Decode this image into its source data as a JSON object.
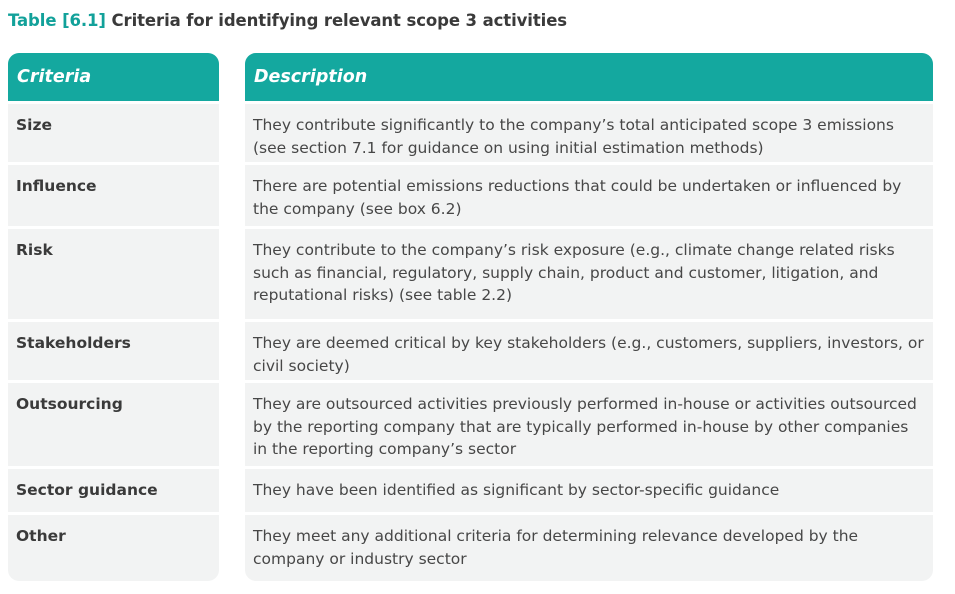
{
  "title": {
    "tag": "Table [6.1]",
    "text": "Criteria for identifying relevant scope 3 activities"
  },
  "headers": {
    "criteria": "Criteria",
    "description": "Description"
  },
  "rows": [
    {
      "criteria": "Size",
      "description": "They contribute significantly to the company’s total anticipated scope 3 emissions (see section 7.1 for guidance on using initial estimation methods)"
    },
    {
      "criteria": "Influence",
      "description": "There are potential emissions reductions that could be undertaken or influenced by the company (see box 6.2)"
    },
    {
      "criteria": "Risk",
      "description": "They contribute to the company’s risk exposure (e.g., climate change related risks such as financial, regulatory, supply chain, product and customer, litigation, and reputational risks) (see table 2.2)"
    },
    {
      "criteria": "Stakeholders",
      "description": "They are deemed critical by key stakeholders (e.g., customers, suppliers, investors, or civil society)"
    },
    {
      "criteria": "Outsourcing",
      "description": "They are outsourced activities previously performed in-house or activities outsourced by the reporting company that are typically performed in-house by other companies in the reporting company’s sector"
    },
    {
      "criteria": "Sector guidance",
      "description": "They have been identified as significant by sector-specific guidance"
    },
    {
      "criteria": "Other",
      "description": "They meet any additional criteria for determining relevance developed by the company or industry sector"
    }
  ],
  "colors": {
    "accent": "#14a89f",
    "row_background": "#f2f3f3"
  }
}
